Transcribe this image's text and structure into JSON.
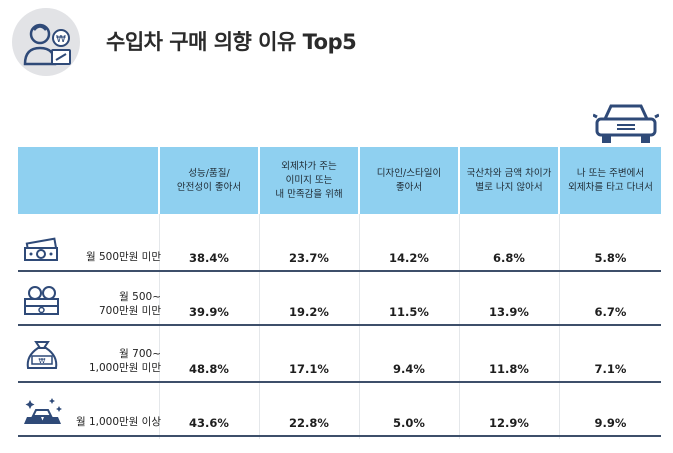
{
  "title": "수입차 구매 의향 이유 Top5",
  "icons": {
    "title": "person-money-icon",
    "car": "car-icon",
    "rows": [
      "banknotes-icon",
      "banknotes-coins-icon",
      "money-bag-icon",
      "gold-bars-icon"
    ]
  },
  "colors": {
    "header_bg": "#8fd0f0",
    "row_line": "#3d4f6a",
    "icon": "#2f4a78"
  },
  "chart_data": {
    "type": "table",
    "title": "수입차 구매 의향 이유 Top5",
    "columns": [
      "성능/품질/\n안전성이 좋아서",
      "외제차가 주는\n이미지 또는\n내 만족감을 위해",
      "디자인/스타일이\n좋아서",
      "국산차와 금액 차이가\n별로 나지 않아서",
      "나 또는 주변에서\n외제차를 타고 다녀서"
    ],
    "rows": [
      {
        "label": "월 500만원 미만",
        "values": [
          "38.4%",
          "23.7%",
          "14.2%",
          "6.8%",
          "5.8%"
        ]
      },
      {
        "label": "월 500~\n700만원 미만",
        "values": [
          "39.9%",
          "19.2%",
          "11.5%",
          "13.9%",
          "6.7%"
        ]
      },
      {
        "label": "월 700~\n1,000만원 미만",
        "values": [
          "48.8%",
          "17.1%",
          "9.4%",
          "11.8%",
          "7.1%"
        ]
      },
      {
        "label": "월 1,000만원 이상",
        "values": [
          "43.6%",
          "22.8%",
          "5.0%",
          "12.9%",
          "9.9%"
        ]
      }
    ]
  }
}
